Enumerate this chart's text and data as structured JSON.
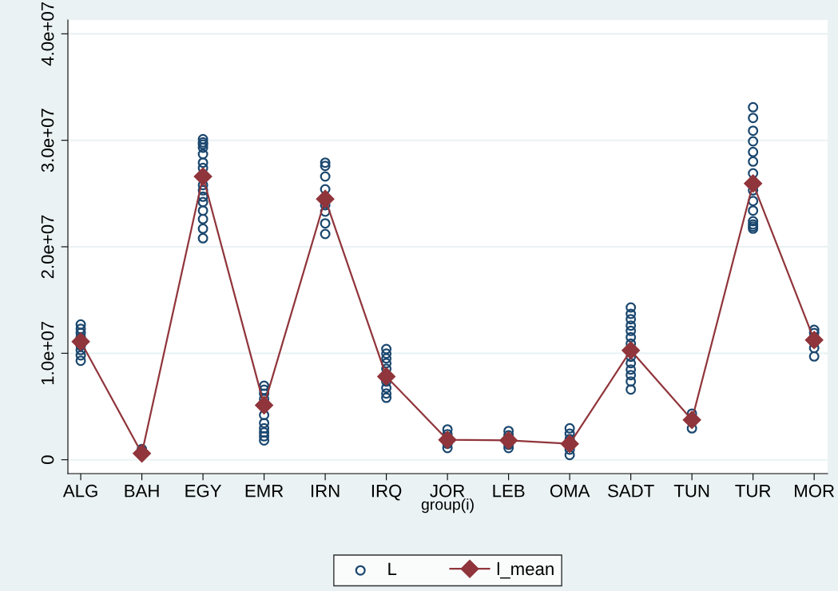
{
  "chart_data": {
    "type": "line",
    "xlabel": "group(i)",
    "categories": [
      "ALG",
      "BAH",
      "EGY",
      "EMR",
      "IRN",
      "IRQ",
      "JOR",
      "LEB",
      "OMA",
      "SADT",
      "TUN",
      "TUR",
      "MOR"
    ],
    "series": [
      {
        "name": "L",
        "type": "scatter",
        "marker": "circle",
        "color": "#1a476f",
        "x": [
          "ALG",
          "ALG",
          "ALG",
          "ALG",
          "ALG",
          "ALG",
          "ALG",
          "ALG",
          "BAH",
          "EGY",
          "EGY",
          "EGY",
          "EGY",
          "EGY",
          "EGY",
          "EGY",
          "EGY",
          "EGY",
          "EGY",
          "EGY",
          "EGY",
          "EGY",
          "EGY",
          "EGY",
          "EMR",
          "EMR",
          "EMR",
          "EMR",
          "EMR",
          "EMR",
          "EMR",
          "EMR",
          "EMR",
          "EMR",
          "IRN",
          "IRN",
          "IRN",
          "IRN",
          "IRN",
          "IRN",
          "IRN",
          "IRN",
          "IRQ",
          "IRQ",
          "IRQ",
          "IRQ",
          "IRQ",
          "IRQ",
          "IRQ",
          "IRQ",
          "IRQ",
          "JOR",
          "JOR",
          "JOR",
          "JOR",
          "LEB",
          "LEB",
          "LEB",
          "LEB",
          "OMA",
          "OMA",
          "OMA",
          "OMA",
          "OMA",
          "SADT",
          "SADT",
          "SADT",
          "SADT",
          "SADT",
          "SADT",
          "SADT",
          "SADT",
          "SADT",
          "SADT",
          "SADT",
          "SADT",
          "SADT",
          "TUN",
          "TUN",
          "TUR",
          "TUR",
          "TUR",
          "TUR",
          "TUR",
          "TUR",
          "TUR",
          "TUR",
          "TUR",
          "TUR",
          "TUR",
          "TUR",
          "TUR",
          "TUR",
          "MOR",
          "MOR",
          "MOR",
          "MOR",
          "MOR",
          "MOR"
        ],
        "values": [
          12700000,
          12300000,
          11900000,
          11500000,
          10700000,
          10300000,
          9800000,
          9300000,
          1000000,
          30100000,
          29800000,
          29600000,
          29300000,
          28700000,
          27900000,
          27400000,
          25800000,
          25300000,
          24700000,
          24200000,
          23400000,
          22600000,
          21700000,
          20800000,
          6950000,
          6570000,
          6200000,
          5700000,
          4200000,
          3450000,
          2950000,
          2570000,
          2200000,
          1820000,
          27900000,
          27600000,
          26600000,
          25400000,
          23900000,
          23300000,
          22200000,
          21200000,
          10400000,
          9970000,
          9520000,
          9070000,
          8550000,
          7350000,
          6750000,
          6220000,
          5820000,
          2850000,
          2400000,
          1500000,
          1100000,
          2700000,
          2300000,
          1400000,
          1100000,
          2950000,
          2450000,
          1950000,
          950000,
          450000,
          14300000,
          13700000,
          13200000,
          12600000,
          12100000,
          11500000,
          10900000,
          9670000,
          9070000,
          8470000,
          7950000,
          7350000,
          6600000,
          4330000,
          2950000,
          33100000,
          32100000,
          30900000,
          29900000,
          28900000,
          28000000,
          26900000,
          25300000,
          24300000,
          23400000,
          22400000,
          22100000,
          21700000,
          21900000,
          12200000,
          11900000,
          11500000,
          11000000,
          10500000,
          9700000
        ]
      },
      {
        "name": "l_mean",
        "marker": "diamond",
        "color": "#90353b",
        "values": [
          11100000,
          600000,
          26600000,
          5120000,
          24490000,
          7820000,
          1870000,
          1820000,
          1500000,
          10270000,
          3750000,
          25940000,
          11240000
        ]
      }
    ],
    "ylim": [
      -1300000,
      41300000
    ],
    "yticks": [
      0,
      {
        "value": 10000000,
        "label": "1.0e+07"
      },
      {
        "value": 20000000,
        "label": "2.0e+07"
      },
      {
        "value": 30000000,
        "label": "3.0e+07"
      },
      {
        "value": 40000000,
        "label": "4.0e+07"
      }
    ],
    "grid": "y",
    "legend": "bottom"
  }
}
